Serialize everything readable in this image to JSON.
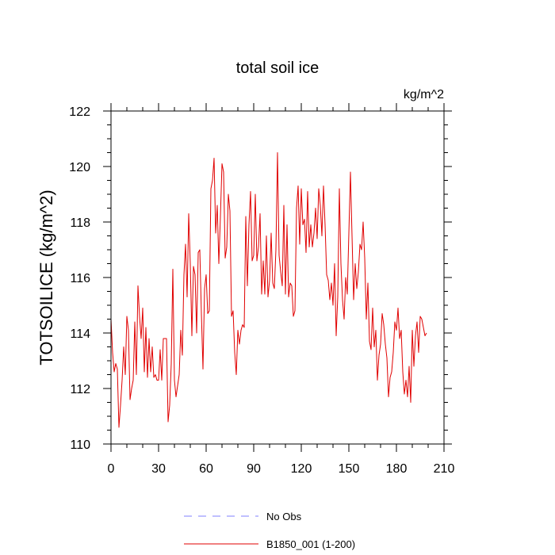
{
  "chart_data": {
    "type": "line",
    "title": "total soil ice",
    "units": "kg/m^2",
    "ylabel": "TOTSOILICE  (kg/m^2)",
    "xlabel": "",
    "xlim": [
      0,
      210
    ],
    "ylim": [
      110,
      122
    ],
    "xticks": [
      0,
      30,
      60,
      90,
      120,
      150,
      180,
      210
    ],
    "yticks": [
      110,
      112,
      114,
      116,
      118,
      120,
      122
    ],
    "grid": false,
    "legend": [
      {
        "label": "No Obs",
        "style": "dashed",
        "color": "#8080ff"
      },
      {
        "label": "B1850_001 (1-200)",
        "style": "solid",
        "color": "#e00000"
      }
    ],
    "series": [
      {
        "name": "B1850_001 (1-200)",
        "color": "#e00000",
        "x_start": 0,
        "x_step": 1,
        "values": [
          114.5,
          113.3,
          112.6,
          112.9,
          112.7,
          110.6,
          111.4,
          112.3,
          113.5,
          112.5,
          114.6,
          114.1,
          111.6,
          112.0,
          112.3,
          114.4,
          112.5,
          115.7,
          114.6,
          113.8,
          114.9,
          112.6,
          114.2,
          112.4,
          113.8,
          112.6,
          113.5,
          112.4,
          112.5,
          112.3,
          112.3,
          113.4,
          112.3,
          113.8,
          113.8,
          113.8,
          110.8,
          111.4,
          112.9,
          116.3,
          112.3,
          111.7,
          112.1,
          112.5,
          114.1,
          113.2,
          116.1,
          117.2,
          115.3,
          118.3,
          116.5,
          113.9,
          116.4,
          116.1,
          114.0,
          116.9,
          117.0,
          114.7,
          112.7,
          115.6,
          116.1,
          114.7,
          114.8,
          119.2,
          119.5,
          120.3,
          117.6,
          118.6,
          116.5,
          118.2,
          120.1,
          119.8,
          116.7,
          117.1,
          119.0,
          118.4,
          114.6,
          114.8,
          113.3,
          112.5,
          114.1,
          113.6,
          114.1,
          114.3,
          114.2,
          118.2,
          115.7,
          117.9,
          119.1,
          116.6,
          116.8,
          119.0,
          116.6,
          117.1,
          118.3,
          115.4,
          116.6,
          115.4,
          117.5,
          115.3,
          115.9,
          117.6,
          115.8,
          115.6,
          117.0,
          120.5,
          116.8,
          116.2,
          115.7,
          118.6,
          115.4,
          117.9,
          115.3,
          115.8,
          115.7,
          114.6,
          114.8,
          118.5,
          119.3,
          117.2,
          119.2,
          117.9,
          118.1,
          116.9,
          119.1,
          117.1,
          117.9,
          117.1,
          117.6,
          118.5,
          117.4,
          119.2,
          118.6,
          117.5,
          119.3,
          117.9,
          116.1,
          115.9,
          115.2,
          115.8,
          115.0,
          116.5,
          113.9,
          115.3,
          119.2,
          116.5,
          115.2,
          114.5,
          116.0,
          115.4,
          117.6,
          119.8,
          117.5,
          115.2,
          116.5,
          115.6,
          116.2,
          117.2,
          117.0,
          118.0,
          116.7,
          114.5,
          115.8,
          113.7,
          113.4,
          114.9,
          113.5,
          114.1,
          112.3,
          113.2,
          113.6,
          114.7,
          114.3,
          113.6,
          113.1,
          111.7,
          112.4,
          112.6,
          113.3,
          114.4,
          114.1,
          114.9,
          113.8,
          114.1,
          112.6,
          111.8,
          112.3,
          111.7,
          112.8,
          111.5,
          114.1,
          112.8,
          113.9,
          114.4,
          113.3,
          114.6,
          114.5,
          114.2,
          113.9,
          114.0
        ]
      }
    ]
  }
}
